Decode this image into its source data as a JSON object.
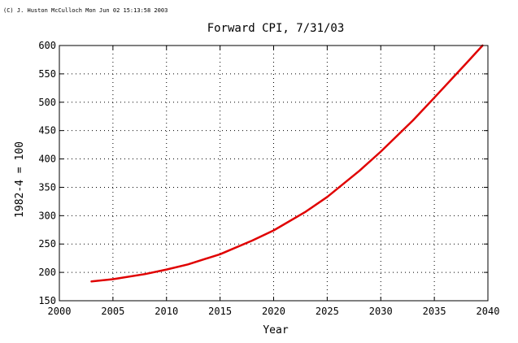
{
  "copyright": "(C) J. Huston McCulloch Mon Jun 02 15:13:58 2003",
  "chart_data": {
    "type": "line",
    "title": "Forward CPI, 7/31/03",
    "xlabel": "Year",
    "ylabel": "1982-4 = 100",
    "xlim": [
      2000,
      2040
    ],
    "ylim": [
      150,
      600
    ],
    "xticks": [
      2000,
      2005,
      2010,
      2015,
      2020,
      2025,
      2030,
      2035,
      2040
    ],
    "yticks": [
      150,
      200,
      250,
      300,
      350,
      400,
      450,
      500,
      550,
      600
    ],
    "grid": true,
    "line_color": "#e00000",
    "series": [
      {
        "x": [
          2003,
          2005,
          2008,
          2010,
          2012,
          2015,
          2018,
          2020,
          2023,
          2025,
          2028,
          2030,
          2033,
          2035,
          2038,
          2039.5
        ],
        "values": [
          184,
          188,
          197,
          205,
          214,
          232,
          256,
          274,
          307,
          333,
          379,
          413,
          468,
          508,
          569,
          600
        ]
      }
    ]
  }
}
